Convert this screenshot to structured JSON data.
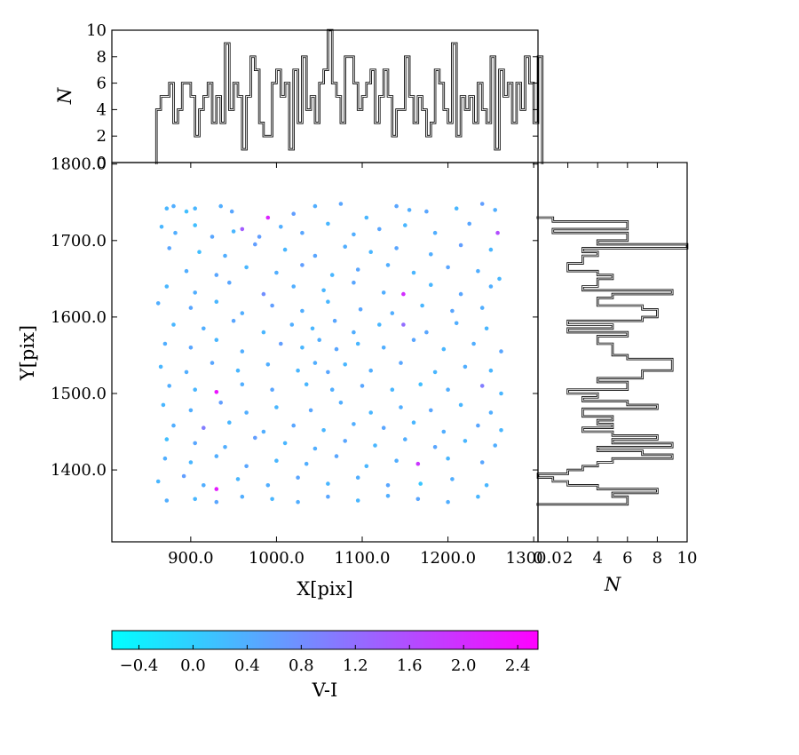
{
  "chart_data": [
    {
      "type": "scatter",
      "name": "main",
      "xlabel": "X[pix]",
      "ylabel": "Y[pix]",
      "xlim": [
        808,
        1305
      ],
      "ylim": [
        1306,
        1802
      ],
      "xticks": [
        900,
        1000,
        1100,
        1200,
        1300
      ],
      "xtick_labels": [
        "900.0",
        "1000.0",
        "1100.0",
        "1200.0",
        "1300.0"
      ],
      "yticks": [
        1400,
        1500,
        1600,
        1700,
        1800
      ],
      "ytick_labels": [
        "1400.0",
        "1500.0",
        "1600.0",
        "1700.0",
        "1800.0"
      ],
      "color_by": "V-I",
      "colormap": "cool",
      "points": [
        [
          872,
          1742,
          0.3
        ],
        [
          880,
          1745,
          0.4
        ],
        [
          895,
          1738,
          0.2
        ],
        [
          905,
          1742,
          0.3
        ],
        [
          935,
          1745,
          0.4
        ],
        [
          948,
          1738,
          0.5
        ],
        [
          960,
          1715,
          1.4
        ],
        [
          990,
          1730,
          2.1
        ],
        [
          1020,
          1735,
          0.6
        ],
        [
          1045,
          1745,
          0.4
        ],
        [
          1075,
          1748,
          0.5
        ],
        [
          1105,
          1730,
          0.3
        ],
        [
          1140,
          1745,
          0.5
        ],
        [
          1155,
          1740,
          0.4
        ],
        [
          1175,
          1738,
          0.5
        ],
        [
          1210,
          1742,
          0.3
        ],
        [
          1240,
          1748,
          0.6
        ],
        [
          1255,
          1740,
          0.4
        ],
        [
          866,
          1718,
          0.3
        ],
        [
          882,
          1710,
          0.4
        ],
        [
          905,
          1720,
          0.2
        ],
        [
          925,
          1705,
          0.5
        ],
        [
          950,
          1712,
          0.3
        ],
        [
          980,
          1705,
          0.6
        ],
        [
          1005,
          1718,
          0.4
        ],
        [
          1030,
          1710,
          0.5
        ],
        [
          1060,
          1722,
          0.3
        ],
        [
          1090,
          1708,
          0.4
        ],
        [
          1120,
          1715,
          0.5
        ],
        [
          1150,
          1720,
          0.3
        ],
        [
          1185,
          1710,
          0.4
        ],
        [
          1225,
          1722,
          0.5
        ],
        [
          1258,
          1710,
          1.6
        ],
        [
          875,
          1690,
          0.5
        ],
        [
          910,
          1685,
          0.2
        ],
        [
          940,
          1680,
          0.4
        ],
        [
          975,
          1695,
          0.6
        ],
        [
          1010,
          1688,
          0.3
        ],
        [
          1045,
          1680,
          0.5
        ],
        [
          1080,
          1692,
          0.4
        ],
        [
          1110,
          1685,
          0.3
        ],
        [
          1140,
          1690,
          0.5
        ],
        [
          1180,
          1682,
          0.4
        ],
        [
          1215,
          1694,
          0.6
        ],
        [
          1250,
          1688,
          0.3
        ],
        [
          895,
          1660,
          0.4
        ],
        [
          930,
          1655,
          0.5
        ],
        [
          965,
          1665,
          0.3
        ],
        [
          1000,
          1658,
          0.4
        ],
        [
          1030,
          1668,
          0.6
        ],
        [
          1065,
          1655,
          0.3
        ],
        [
          1095,
          1662,
          0.5
        ],
        [
          1130,
          1668,
          0.4
        ],
        [
          1160,
          1658,
          0.3
        ],
        [
          1200,
          1665,
          0.5
        ],
        [
          1235,
          1660,
          0.4
        ],
        [
          1260,
          1650,
          0.3
        ],
        [
          872,
          1640,
          0.3
        ],
        [
          905,
          1632,
          0.4
        ],
        [
          945,
          1645,
          0.5
        ],
        [
          985,
          1630,
          0.8
        ],
        [
          1020,
          1640,
          0.4
        ],
        [
          1055,
          1635,
          0.3
        ],
        [
          1090,
          1645,
          0.5
        ],
        [
          1125,
          1632,
          0.4
        ],
        [
          1148,
          1630,
          2.0
        ],
        [
          1180,
          1642,
          0.3
        ],
        [
          1215,
          1630,
          0.5
        ],
        [
          1250,
          1640,
          0.4
        ],
        [
          862,
          1618,
          0.4
        ],
        [
          900,
          1612,
          0.5
        ],
        [
          930,
          1620,
          0.3
        ],
        [
          960,
          1605,
          0.4
        ],
        [
          995,
          1615,
          0.6
        ],
        [
          1030,
          1608,
          0.4
        ],
        [
          1060,
          1620,
          0.3
        ],
        [
          1098,
          1610,
          0.5
        ],
        [
          1135,
          1605,
          0.4
        ],
        [
          1170,
          1615,
          0.3
        ],
        [
          1205,
          1608,
          0.5
        ],
        [
          1240,
          1612,
          0.4
        ],
        [
          880,
          1590,
          0.3
        ],
        [
          915,
          1585,
          0.4
        ],
        [
          950,
          1595,
          0.5
        ],
        [
          985,
          1580,
          0.3
        ],
        [
          1018,
          1590,
          0.4
        ],
        [
          1042,
          1585,
          0.3
        ],
        [
          1068,
          1595,
          0.5
        ],
        [
          1090,
          1580,
          0.4
        ],
        [
          1120,
          1590,
          0.3
        ],
        [
          1148,
          1590,
          1.2
        ],
        [
          1175,
          1580,
          0.5
        ],
        [
          1210,
          1592,
          0.4
        ],
        [
          1245,
          1585,
          0.3
        ],
        [
          870,
          1565,
          0.4
        ],
        [
          900,
          1560,
          0.5
        ],
        [
          930,
          1570,
          0.3
        ],
        [
          960,
          1555,
          0.4
        ],
        [
          1005,
          1565,
          0.6
        ],
        [
          1030,
          1560,
          0.3
        ],
        [
          1050,
          1570,
          0.4
        ],
        [
          1070,
          1558,
          0.5
        ],
        [
          1095,
          1565,
          0.3
        ],
        [
          1125,
          1560,
          0.4
        ],
        [
          1160,
          1570,
          0.5
        ],
        [
          1195,
          1558,
          0.3
        ],
        [
          1230,
          1565,
          0.4
        ],
        [
          1262,
          1555,
          0.5
        ],
        [
          865,
          1535,
          0.3
        ],
        [
          895,
          1528,
          0.4
        ],
        [
          925,
          1540,
          0.5
        ],
        [
          955,
          1530,
          0.3
        ],
        [
          990,
          1538,
          0.4
        ],
        [
          1025,
          1530,
          0.3
        ],
        [
          1045,
          1540,
          0.4
        ],
        [
          1060,
          1528,
          0.5
        ],
        [
          1080,
          1538,
          0.3
        ],
        [
          1110,
          1530,
          0.4
        ],
        [
          1145,
          1540,
          0.5
        ],
        [
          1185,
          1528,
          0.3
        ],
        [
          1220,
          1535,
          0.4
        ],
        [
          1250,
          1530,
          0.3
        ],
        [
          875,
          1510,
          0.4
        ],
        [
          905,
          1505,
          0.3
        ],
        [
          930,
          1502,
          2.3
        ],
        [
          960,
          1512,
          0.4
        ],
        [
          995,
          1505,
          0.5
        ],
        [
          1035,
          1512,
          0.3
        ],
        [
          1065,
          1505,
          0.4
        ],
        [
          1100,
          1510,
          0.5
        ],
        [
          1135,
          1505,
          0.3
        ],
        [
          1168,
          1512,
          0.2
        ],
        [
          1200,
          1505,
          0.4
        ],
        [
          1240,
          1510,
          1.0
        ],
        [
          1262,
          1500,
          0.3
        ],
        [
          868,
          1485,
          0.3
        ],
        [
          900,
          1478,
          0.4
        ],
        [
          935,
          1488,
          0.6
        ],
        [
          965,
          1475,
          0.4
        ],
        [
          1000,
          1482,
          0.3
        ],
        [
          1040,
          1478,
          0.5
        ],
        [
          1075,
          1488,
          0.4
        ],
        [
          1110,
          1475,
          0.3
        ],
        [
          1145,
          1482,
          0.4
        ],
        [
          1180,
          1478,
          0.5
        ],
        [
          1215,
          1485,
          0.3
        ],
        [
          1250,
          1475,
          0.4
        ],
        [
          880,
          1458,
          0.4
        ],
        [
          915,
          1455,
          1.0
        ],
        [
          945,
          1462,
          0.3
        ],
        [
          985,
          1450,
          0.4
        ],
        [
          1020,
          1458,
          0.5
        ],
        [
          1055,
          1452,
          0.3
        ],
        [
          1090,
          1460,
          0.4
        ],
        [
          1125,
          1455,
          0.5
        ],
        [
          1160,
          1462,
          0.3
        ],
        [
          1195,
          1450,
          0.4
        ],
        [
          1235,
          1458,
          0.5
        ],
        [
          1262,
          1452,
          0.3
        ],
        [
          872,
          1440,
          0.2
        ],
        [
          905,
          1435,
          0.5
        ],
        [
          940,
          1430,
          0.4
        ],
        [
          975,
          1442,
          0.6
        ],
        [
          1010,
          1435,
          0.3
        ],
        [
          1045,
          1428,
          0.4
        ],
        [
          1080,
          1438,
          0.5
        ],
        [
          1115,
          1432,
          0.3
        ],
        [
          1150,
          1440,
          0.4
        ],
        [
          1185,
          1430,
          0.5
        ],
        [
          1220,
          1438,
          0.3
        ],
        [
          1255,
          1432,
          0.4
        ],
        [
          870,
          1415,
          0.4
        ],
        [
          900,
          1410,
          0.3
        ],
        [
          930,
          1418,
          0.4
        ],
        [
          965,
          1405,
          0.5
        ],
        [
          1000,
          1412,
          0.3
        ],
        [
          1035,
          1408,
          0.4
        ],
        [
          1070,
          1418,
          0.5
        ],
        [
          1105,
          1405,
          0.3
        ],
        [
          1140,
          1412,
          0.4
        ],
        [
          1165,
          1408,
          1.9
        ],
        [
          1200,
          1415,
          0.3
        ],
        [
          1240,
          1410,
          0.5
        ],
        [
          862,
          1385,
          0.3
        ],
        [
          892,
          1392,
          0.6
        ],
        [
          915,
          1380,
          0.4
        ],
        [
          930,
          1375,
          2.2
        ],
        [
          955,
          1388,
          0.3
        ],
        [
          990,
          1380,
          0.4
        ],
        [
          1025,
          1390,
          0.5
        ],
        [
          1060,
          1382,
          0.3
        ],
        [
          1095,
          1390,
          0.4
        ],
        [
          1130,
          1380,
          0.5
        ],
        [
          1168,
          1382,
          0.1
        ],
        [
          1205,
          1388,
          0.4
        ],
        [
          1245,
          1380,
          0.3
        ],
        [
          872,
          1360,
          0.4
        ],
        [
          905,
          1362,
          0.3
        ],
        [
          930,
          1358,
          0.5
        ],
        [
          960,
          1365,
          0.4
        ],
        [
          995,
          1362,
          0.3
        ],
        [
          1025,
          1358,
          0.4
        ],
        [
          1060,
          1365,
          0.5
        ],
        [
          1095,
          1360,
          0.3
        ],
        [
          1130,
          1366,
          0.4
        ],
        [
          1165,
          1362,
          0.5
        ],
        [
          1200,
          1358,
          0.4
        ],
        [
          1235,
          1365,
          0.3
        ]
      ]
    },
    {
      "type": "bar",
      "name": "top-histogram",
      "ylabel": "N",
      "ylim": [
        0,
        10
      ],
      "yticks": [
        0,
        2,
        4,
        6,
        8,
        10
      ],
      "ytick_labels": [
        "0",
        "2",
        "4",
        "6",
        "8",
        "10"
      ],
      "bin_edges_start": 860,
      "bin_width": 5.0,
      "values": [
        4,
        5,
        5,
        6,
        3,
        4,
        6,
        6,
        5,
        2,
        4,
        5,
        6,
        3,
        5,
        3,
        9,
        4,
        6,
        5,
        1,
        5,
        8,
        7,
        3,
        2,
        2,
        6,
        7,
        5,
        6,
        1,
        7,
        3,
        8,
        4,
        5,
        3,
        6,
        7,
        10,
        6,
        5,
        3,
        8,
        8,
        6,
        4,
        5,
        6,
        7,
        3,
        5,
        7,
        5,
        2,
        4,
        4,
        8,
        5,
        3,
        5,
        4,
        2,
        3,
        7,
        6,
        4,
        3,
        9,
        2,
        5,
        4,
        5,
        3,
        6,
        4,
        3,
        8,
        1,
        7,
        5,
        6,
        3,
        6,
        4,
        8,
        6,
        3,
        8
      ]
    },
    {
      "type": "bar",
      "name": "right-histogram",
      "orientation": "horizontal",
      "xlabel": "N",
      "xlim": [
        0,
        10
      ],
      "xticks": [
        0,
        2,
        4,
        6,
        8,
        10
      ],
      "xtick_labels": [
        "0",
        "2",
        "4",
        "6",
        "8",
        "10"
      ],
      "bin_edges_start": 1355,
      "bin_width": 5.0,
      "values": [
        6,
        6,
        5,
        8,
        4,
        2,
        1,
        0,
        2,
        3,
        4,
        5,
        9,
        7,
        4,
        9,
        5,
        8,
        5,
        3,
        5,
        4,
        5,
        3,
        3,
        8,
        6,
        3,
        4,
        2,
        6,
        6,
        4,
        7,
        7,
        9,
        9,
        9,
        6,
        5,
        5,
        5,
        4,
        4,
        6,
        2,
        5,
        2,
        7,
        8,
        8,
        7,
        4,
        4,
        5,
        9,
        3,
        4,
        4,
        5,
        4,
        2,
        2,
        3,
        3,
        4,
        3,
        10,
        4,
        6,
        6,
        1,
        6,
        6,
        1
      ]
    },
    {
      "type": "colorbar",
      "name": "colorbar",
      "label": "V-I",
      "colormap": "cool",
      "range": [
        -0.6,
        2.55
      ],
      "colors": {
        "low": "#00ffff",
        "high": "#ff00ff"
      },
      "ticks": [
        -0.4,
        0.0,
        0.4,
        0.8,
        1.2,
        1.6,
        2.0,
        2.4
      ],
      "tick_labels": [
        "−0.4",
        "0.0",
        "0.4",
        "0.8",
        "1.2",
        "1.6",
        "2.0",
        "2.4"
      ]
    }
  ]
}
